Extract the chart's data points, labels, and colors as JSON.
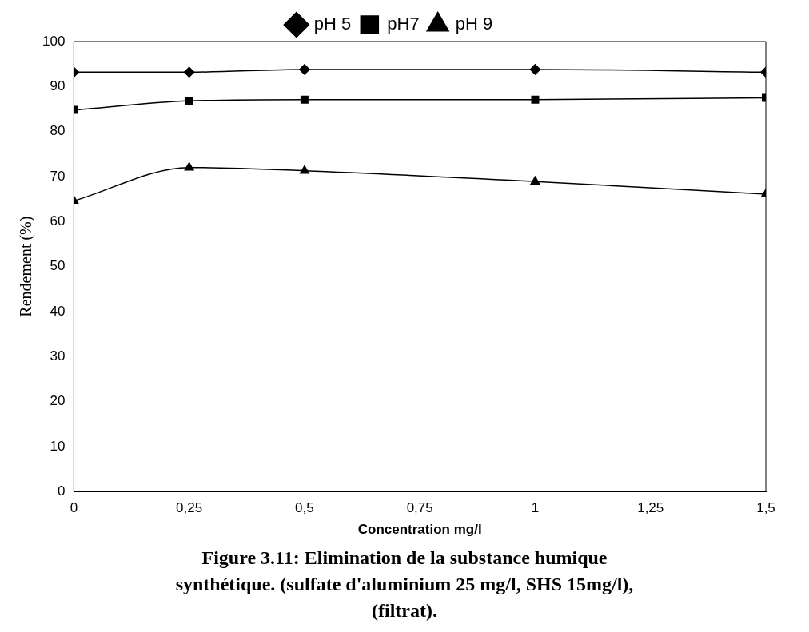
{
  "chart_data": {
    "type": "line",
    "title": "Figure 3.11: Elimination de la substance humique synthétique. (sulfate d'aluminium 25 mg/l, SHS 15mg/l),(filtrat).",
    "xlabel": "Concentration mg/l",
    "ylabel": "Rendement (%)",
    "x": [
      0,
      0.25,
      0.5,
      1,
      1.5
    ],
    "series": [
      {
        "name": "pH 5",
        "color": "#000000",
        "marker": "diamond",
        "values": [
          93.2,
          93.2,
          93.8,
          93.8,
          93.2
        ]
      },
      {
        "name": "pH7",
        "color": "#000000",
        "marker": "square",
        "values": [
          84.8,
          86.8,
          87.1,
          87.1,
          87.5
        ]
      },
      {
        "name": "pH 9",
        "color": "#000000",
        "marker": "triangle",
        "values": [
          64.6,
          72,
          71.3,
          68.9,
          66.1
        ]
      }
    ],
    "xlim": [
      0,
      1.5
    ],
    "xticks": [
      0,
      {
        "value": 0.25,
        "label": "0,25"
      },
      {
        "value": 0.5,
        "label": "0,5"
      },
      {
        "value": 0.75,
        "label": "0,75"
      },
      1,
      {
        "value": 1.25,
        "label": "1,25"
      },
      {
        "value": 1.5,
        "label": "1,5"
      }
    ],
    "ylim": [
      0,
      100
    ],
    "yticks": [
      0,
      10,
      20,
      30,
      40,
      50,
      60,
      70,
      80,
      90,
      100
    ],
    "legend": "top",
    "line_style": "solid"
  }
}
